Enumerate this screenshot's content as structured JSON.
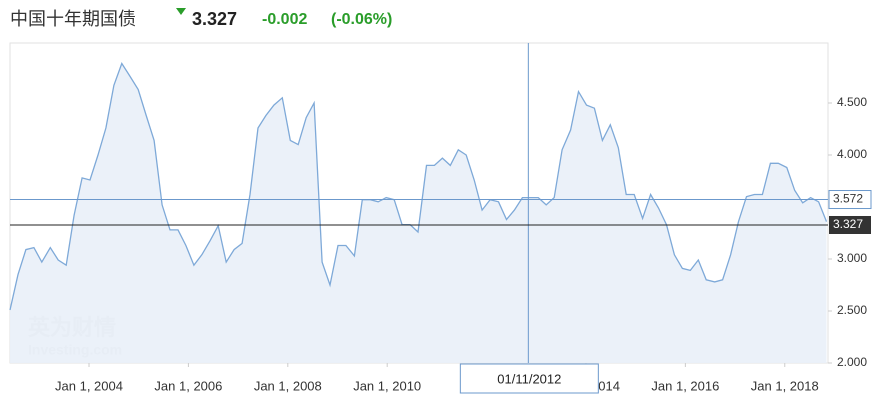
{
  "chart_data": {
    "type": "area",
    "title": "中国十年期国债",
    "price": 3.327,
    "change": -0.002,
    "change_pct": "(-0.06%)",
    "watermark": [
      "英为财情",
      "Investing.com"
    ],
    "color": "#7ea9d8",
    "fill": "#e9f0f8",
    "xlim": [
      2002.41,
      2018.87
    ],
    "ylim": [
      2.0,
      5.077
    ],
    "yticks": [
      {
        "value": 2.0,
        "label": "2.000"
      },
      {
        "value": 2.5,
        "label": "2.500"
      },
      {
        "value": 3.0,
        "label": "3.000"
      },
      {
        "value": 4.0,
        "label": "4.000"
      },
      {
        "value": 4.5,
        "label": "4.500"
      }
    ],
    "xticks": [
      {
        "value": 2004.0,
        "label": "Jan 1, 2004"
      },
      {
        "value": 2006.0,
        "label": "Jan 1, 2006"
      },
      {
        "value": 2008.0,
        "label": "Jan 1, 2008"
      },
      {
        "value": 2010.0,
        "label": "Jan 1, 2010"
      },
      {
        "value": 2014.0,
        "label": "Jan 1, 2014"
      },
      {
        "value": 2016.0,
        "label": "Jan 1, 2016"
      },
      {
        "value": 2018.0,
        "label": "Jan 1, 2018"
      }
    ],
    "grid": false,
    "crosshair": {
      "x": 2012.84,
      "x_label": "01/11/2012",
      "y": 3.572
    },
    "x": [
      2002.41,
      2002.57,
      2002.73,
      2002.89,
      2003.05,
      2003.22,
      2003.38,
      2003.54,
      2003.7,
      2003.86,
      2004.02,
      2004.18,
      2004.34,
      2004.5,
      2004.66,
      2004.82,
      2004.99,
      2005.15,
      2005.31,
      2005.47,
      2005.63,
      2005.79,
      2005.95,
      2006.11,
      2006.27,
      2006.44,
      2006.6,
      2006.76,
      2006.92,
      2007.08,
      2007.24,
      2007.4,
      2007.56,
      2007.72,
      2007.89,
      2008.05,
      2008.21,
      2008.37,
      2008.53,
      2008.69,
      2008.85,
      2009.01,
      2009.17,
      2009.34,
      2009.5,
      2009.66,
      2009.82,
      2009.98,
      2010.14,
      2010.3,
      2010.46,
      2010.62,
      2010.79,
      2010.95,
      2011.11,
      2011.27,
      2011.43,
      2011.59,
      2011.75,
      2011.91,
      2012.07,
      2012.24,
      2012.4,
      2012.56,
      2012.72,
      2012.88,
      2013.04,
      2013.2,
      2013.36,
      2013.52,
      2013.69,
      2013.85,
      2014.01,
      2014.17,
      2014.33,
      2014.49,
      2014.65,
      2014.81,
      2014.97,
      2015.14,
      2015.3,
      2015.46,
      2015.62,
      2015.78,
      2015.94,
      2016.1,
      2016.26,
      2016.42,
      2016.59,
      2016.75,
      2016.91,
      2017.07,
      2017.23,
      2017.39,
      2017.55,
      2017.71,
      2017.87,
      2018.04,
      2018.2,
      2018.36,
      2018.52,
      2018.68,
      2018.84
    ],
    "values": [
      2.51,
      2.85,
      3.09,
      3.11,
      2.97,
      3.11,
      2.99,
      2.94,
      3.42,
      3.78,
      3.76,
      4.0,
      4.26,
      4.67,
      4.88,
      4.76,
      4.63,
      4.38,
      4.14,
      3.52,
      3.28,
      3.28,
      3.13,
      2.94,
      3.04,
      3.18,
      3.32,
      2.97,
      3.09,
      3.15,
      3.62,
      4.26,
      4.38,
      4.48,
      4.55,
      4.14,
      4.1,
      4.36,
      4.5,
      2.97,
      2.75,
      3.13,
      3.13,
      3.03,
      3.57,
      3.57,
      3.55,
      3.59,
      3.57,
      3.33,
      3.33,
      3.26,
      3.9,
      3.9,
      3.97,
      3.9,
      4.05,
      4.0,
      3.76,
      3.47,
      3.57,
      3.55,
      3.38,
      3.47,
      3.59,
      3.59,
      3.59,
      3.52,
      3.59,
      4.05,
      4.24,
      4.61,
      4.48,
      4.45,
      4.14,
      4.29,
      4.07,
      3.62,
      3.62,
      3.39,
      3.62,
      3.49,
      3.33,
      3.04,
      2.91,
      2.89,
      2.99,
      2.8,
      2.78,
      2.8,
      3.04,
      3.36,
      3.6,
      3.62,
      3.62,
      3.92,
      3.92,
      3.88,
      3.66,
      3.54,
      3.59,
      3.55,
      3.36
    ]
  }
}
